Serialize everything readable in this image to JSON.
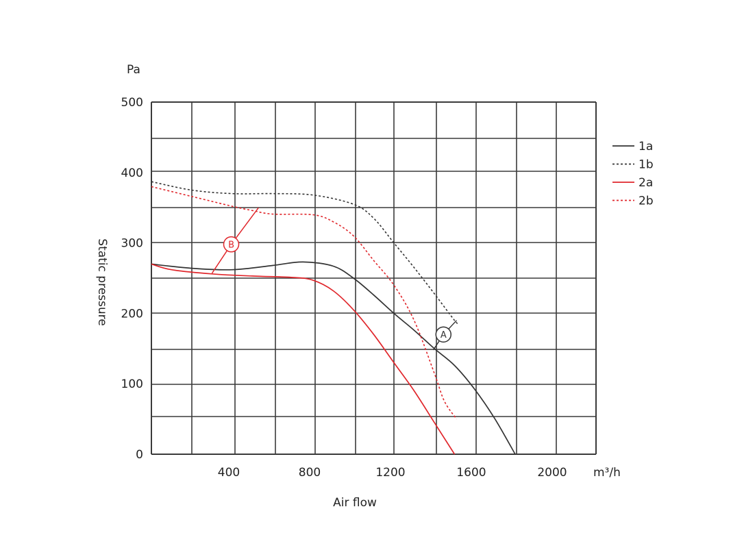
{
  "chart_data": {
    "type": "line",
    "xlabel": "Air flow",
    "ylabel": "Static pressure",
    "x_unit": "m³/h",
    "y_unit": "Pa",
    "xlim": [
      0,
      2200
    ],
    "ylim": [
      0,
      500
    ],
    "x_ticks": [
      {
        "value": 400,
        "label": "400"
      },
      {
        "value": 800,
        "label": "800"
      },
      {
        "value": 1200,
        "label": "1200"
      },
      {
        "value": 1600,
        "label": "1600"
      },
      {
        "value": 2000,
        "label": "2000"
      }
    ],
    "y_ticks": [
      {
        "value": 0,
        "label": "0"
      },
      {
        "value": 100,
        "label": "100"
      },
      {
        "value": 200,
        "label": "200"
      },
      {
        "value": 300,
        "label": "300"
      },
      {
        "value": 400,
        "label": "400"
      },
      {
        "value": 500,
        "label": "500"
      }
    ],
    "grid": true,
    "legend_position": "right",
    "series": [
      {
        "name": "1a",
        "color": "#333333",
        "dash": "solid",
        "points": [
          [
            0,
            270
          ],
          [
            200,
            264
          ],
          [
            400,
            262
          ],
          [
            600,
            268
          ],
          [
            750,
            273
          ],
          [
            900,
            267
          ],
          [
            1000,
            250
          ],
          [
            1100,
            226
          ],
          [
            1200,
            200
          ],
          [
            1300,
            176
          ],
          [
            1400,
            150
          ],
          [
            1500,
            126
          ],
          [
            1600,
            92
          ],
          [
            1700,
            50
          ],
          [
            1800,
            0
          ]
        ]
      },
      {
        "name": "1b",
        "color": "#333333",
        "dash": "dotted",
        "points": [
          [
            0,
            387
          ],
          [
            200,
            375
          ],
          [
            400,
            370
          ],
          [
            600,
            370
          ],
          [
            800,
            368
          ],
          [
            1000,
            355
          ],
          [
            1100,
            335
          ],
          [
            1200,
            300
          ],
          [
            1300,
            265
          ],
          [
            1400,
            228
          ],
          [
            1500,
            190
          ],
          [
            1520,
            185
          ]
        ]
      },
      {
        "name": "2a",
        "color": "#e0262b",
        "dash": "solid",
        "points": [
          [
            0,
            270
          ],
          [
            100,
            262
          ],
          [
            300,
            256
          ],
          [
            500,
            253
          ],
          [
            700,
            251
          ],
          [
            800,
            247
          ],
          [
            900,
            232
          ],
          [
            1000,
            205
          ],
          [
            1100,
            170
          ],
          [
            1200,
            130
          ],
          [
            1300,
            90
          ],
          [
            1400,
            45
          ],
          [
            1500,
            0
          ]
        ]
      },
      {
        "name": "2b",
        "color": "#e0262b",
        "dash": "dotted",
        "points": [
          [
            0,
            380
          ],
          [
            200,
            366
          ],
          [
            400,
            352
          ],
          [
            500,
            346
          ],
          [
            600,
            341
          ],
          [
            800,
            340
          ],
          [
            900,
            330
          ],
          [
            1000,
            310
          ],
          [
            1100,
            275
          ],
          [
            1200,
            240
          ],
          [
            1300,
            190
          ],
          [
            1400,
            115
          ],
          [
            1450,
            75
          ],
          [
            1510,
            50
          ]
        ]
      }
    ],
    "annotations": [
      {
        "label": "A",
        "color": "#333333",
        "at": [
          1445,
          170
        ],
        "leader_from": [
          1395,
          148
        ],
        "tick": [
          1510,
          190
        ]
      },
      {
        "label": "B",
        "color": "#e0262b",
        "at": [
          395,
          298
        ],
        "leader_from": [
          300,
          257
        ],
        "leader_to": [
          530,
          350
        ]
      }
    ]
  }
}
